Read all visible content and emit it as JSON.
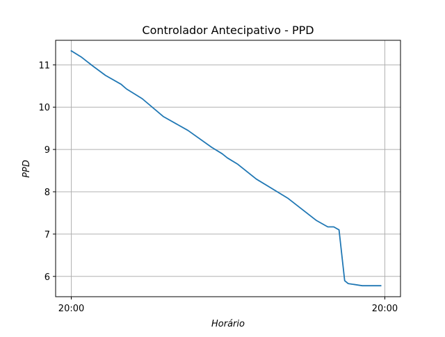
{
  "chart_data": {
    "type": "line",
    "title": "Controlador Antecipativo - PPD",
    "xlabel": "Horário",
    "ylabel": "PPD",
    "grid": true,
    "x_range": [
      -0.05,
      1.05
    ],
    "ylim": [
      5.52,
      11.58
    ],
    "x_ticks": [
      {
        "value": 0,
        "label": "20:00"
      },
      {
        "value": 1,
        "label": "20:00"
      }
    ],
    "y_ticks": [
      {
        "value": 6,
        "label": "6"
      },
      {
        "value": 7,
        "label": "7"
      },
      {
        "value": 8,
        "label": "8"
      },
      {
        "value": 9,
        "label": "9"
      },
      {
        "value": 10,
        "label": "10"
      },
      {
        "value": 11,
        "label": "11"
      }
    ],
    "series": [
      {
        "name": "PPD",
        "color": "#1f77b4",
        "x": [
          0.0,
          0.033,
          0.067,
          0.109,
          0.159,
          0.176,
          0.226,
          0.293,
          0.372,
          0.448,
          0.481,
          0.498,
          0.531,
          0.59,
          0.69,
          0.782,
          0.818,
          0.837,
          0.854,
          0.872,
          0.883,
          0.928,
          0.987
        ],
        "y": [
          11.33,
          11.18,
          10.98,
          10.75,
          10.54,
          10.43,
          10.2,
          9.78,
          9.45,
          9.05,
          8.9,
          8.8,
          8.65,
          8.3,
          7.85,
          7.32,
          7.17,
          7.17,
          7.1,
          5.9,
          5.83,
          5.78,
          5.78
        ]
      }
    ]
  }
}
